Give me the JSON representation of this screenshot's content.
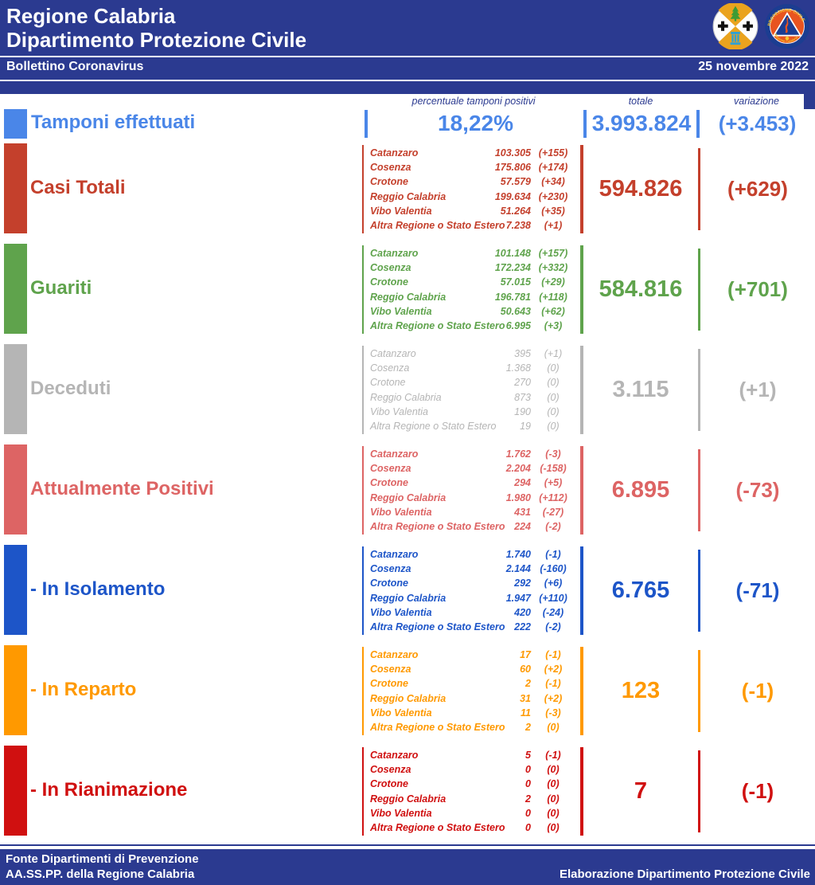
{
  "header": {
    "title_line1": "Regione Calabria",
    "title_line2": "Dipartimento Protezione Civile",
    "bulletin_title": "Bollettino Coronavirus",
    "date": "25 novembre 2022",
    "banner_color": "#2b3a90"
  },
  "icons": {
    "left_logo": "regione-calabria-coat-of-arms",
    "right_logo": "protezione-civile-calabria-logo"
  },
  "column_headers": {
    "percent": "percentuale tamponi positivi",
    "total": "totale",
    "variation": "variazione"
  },
  "tamponi_row": {
    "label": "Tamponi effettuati",
    "percent": "18,22%",
    "total": "3.993.824",
    "variation": "(+3.453)",
    "color": "#4a86e8"
  },
  "rows": [
    {
      "label": "Casi Totali",
      "color": "#c4402c",
      "total": "594.826",
      "variation": "(+629)",
      "muted": false,
      "provinces": [
        [
          "Catanzaro",
          "103.305",
          "(+155)"
        ],
        [
          "Cosenza",
          "175.806",
          "(+174)"
        ],
        [
          "Crotone",
          "57.579",
          "(+34)"
        ],
        [
          "Reggio Calabria",
          "199.634",
          "(+230)"
        ],
        [
          "Vibo Valentia",
          "51.264",
          "(+35)"
        ],
        [
          "Altra Regione o Stato Estero",
          "7.238",
          "(+1)"
        ]
      ]
    },
    {
      "label": "Guariti",
      "color": "#5fa34c",
      "total": "584.816",
      "variation": "(+701)",
      "muted": false,
      "provinces": [
        [
          "Catanzaro",
          "101.148",
          "(+157)"
        ],
        [
          "Cosenza",
          "172.234",
          "(+332)"
        ],
        [
          "Crotone",
          "57.015",
          "(+29)"
        ],
        [
          "Reggio Calabria",
          "196.781",
          "(+118)"
        ],
        [
          "Vibo Valentia",
          "50.643",
          "(+62)"
        ],
        [
          "Altra Regione o Stato Estero",
          "6.995",
          "(+3)"
        ]
      ]
    },
    {
      "label": "Deceduti",
      "color": "#b5b5b5",
      "total": "3.115",
      "variation": "(+1)",
      "muted": true,
      "provinces": [
        [
          "Catanzaro",
          "395",
          "(+1)"
        ],
        [
          "Cosenza",
          "1.368",
          "(0)"
        ],
        [
          "Crotone",
          "270",
          "(0)"
        ],
        [
          "Reggio Calabria",
          "873",
          "(0)"
        ],
        [
          "Vibo Valentia",
          "190",
          "(0)"
        ],
        [
          "Altra Regione o Stato Estero",
          "19",
          "(0)"
        ]
      ]
    },
    {
      "label": "Attualmente Positivi",
      "color": "#dd6464",
      "total": "6.895",
      "variation": "(-73)",
      "muted": false,
      "provinces": [
        [
          "Catanzaro",
          "1.762",
          "(-3)"
        ],
        [
          "Cosenza",
          "2.204",
          "(-158)"
        ],
        [
          "Crotone",
          "294",
          "(+5)"
        ],
        [
          "Reggio Calabria",
          "1.980",
          "(+112)"
        ],
        [
          "Vibo Valentia",
          "431",
          "(-27)"
        ],
        [
          "Altra Regione o Stato Estero",
          "224",
          "(-2)"
        ]
      ]
    },
    {
      "label": "- In Isolamento",
      "color": "#1d55c8",
      "total": "6.765",
      "variation": "(-71)",
      "muted": false,
      "provinces": [
        [
          "Catanzaro",
          "1.740",
          "(-1)"
        ],
        [
          "Cosenza",
          "2.144",
          "(-160)"
        ],
        [
          "Crotone",
          "292",
          "(+6)"
        ],
        [
          "Reggio Calabria",
          "1.947",
          "(+110)"
        ],
        [
          "Vibo Valentia",
          "420",
          "(-24)"
        ],
        [
          "Altra Regione o Stato Estero",
          "222",
          "(-2)"
        ]
      ]
    },
    {
      "label": "- In Reparto",
      "color": "#ff9900",
      "total": "123",
      "variation": "(-1)",
      "muted": false,
      "provinces": [
        [
          "Catanzaro",
          "17",
          "(-1)"
        ],
        [
          "Cosenza",
          "60",
          "(+2)"
        ],
        [
          "Crotone",
          "2",
          "(-1)"
        ],
        [
          "Reggio Calabria",
          "31",
          "(+2)"
        ],
        [
          "Vibo Valentia",
          "11",
          "(-3)"
        ],
        [
          "Altra Regione o Stato Estero",
          "2",
          "(0)"
        ]
      ]
    },
    {
      "label": "- In Rianimazione",
      "color": "#d01010",
      "total": "7",
      "variation": "(-1)",
      "muted": false,
      "provinces": [
        [
          "Catanzaro",
          "5",
          "(-1)"
        ],
        [
          "Cosenza",
          "0",
          "(0)"
        ],
        [
          "Crotone",
          "0",
          "(0)"
        ],
        [
          "Reggio Calabria",
          "2",
          "(0)"
        ],
        [
          "Vibo Valentia",
          "0",
          "(0)"
        ],
        [
          "Altra Regione o Stato Estero",
          "0",
          "(0)"
        ]
      ]
    }
  ],
  "footer": {
    "line1": "Fonte Dipartimenti di Prevenzione",
    "line2": "AA.SS.PP.  della Regione Calabria",
    "right": "Elaborazione Dipartimento Protezione Civile"
  }
}
